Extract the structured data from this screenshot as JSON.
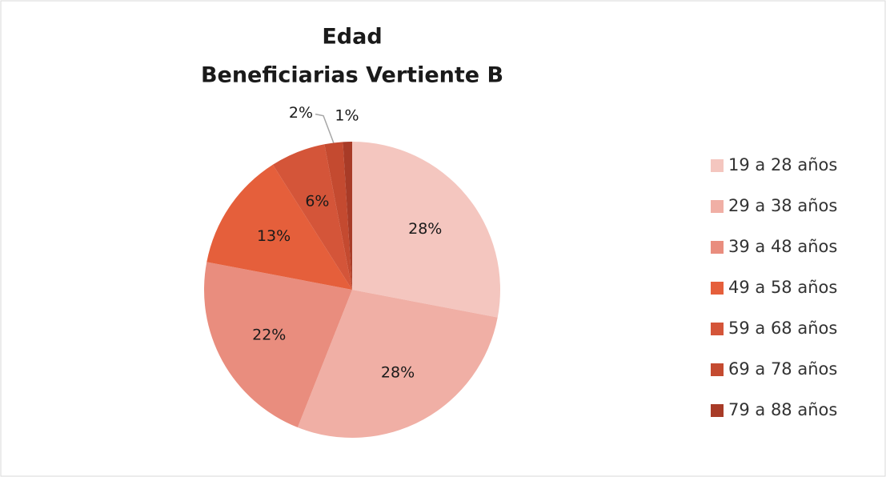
{
  "chart_data": {
    "type": "pie",
    "title": "Edad",
    "subtitle": "Beneficiarias Vertiente B",
    "categories": [
      "19 a 28 años",
      "29 a 38 años",
      "39 a 48 años",
      "49 a 58 años",
      "59 a 68 años",
      "69 a 78 años",
      "79 a 88 años"
    ],
    "values": [
      28,
      28,
      22,
      13,
      6,
      2,
      1
    ],
    "value_labels": [
      "28%",
      "28%",
      "22%",
      "13%",
      "6%",
      "2%",
      "1%"
    ],
    "colors": [
      "#f4c6bf",
      "#f0afa5",
      "#e98d7e",
      "#e55f3b",
      "#d45539",
      "#c44a30",
      "#a83b27"
    ],
    "legend": "right"
  }
}
